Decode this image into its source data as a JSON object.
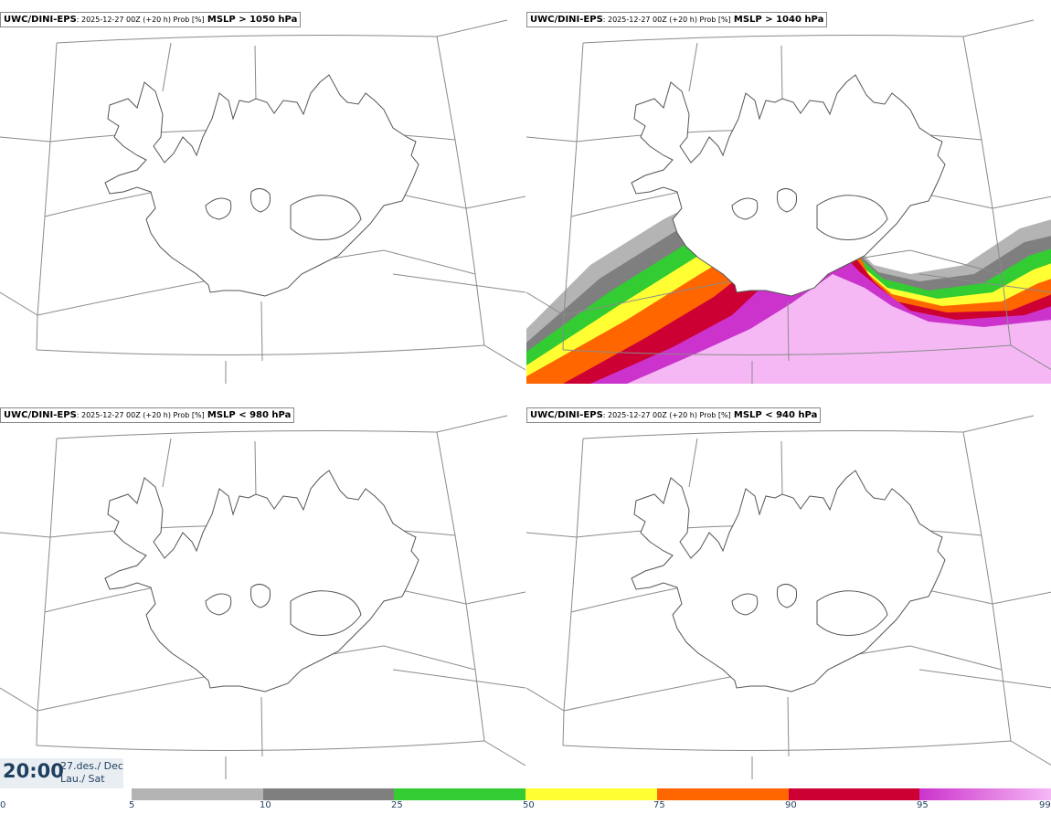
{
  "panels": [
    {
      "source": "UWC/DINI-EPS",
      "meta": ": 2025-12-27 00Z (+20 h) Prob [%]",
      "threshold": "MSLP > 1050 hPa"
    },
    {
      "source": "UWC/DINI-EPS",
      "meta": ": 2025-12-27 00Z (+20 h) Prob [%]",
      "threshold": "MSLP > 1040 hPa"
    },
    {
      "source": "UWC/DINI-EPS",
      "meta": ": 2025-12-27 00Z (+20 h) Prob [%]",
      "threshold": "MSLP < 980 hPa"
    },
    {
      "source": "UWC/DINI-EPS",
      "meta": ": 2025-12-27 00Z (+20 h) Prob [%]",
      "threshold": "MSLP < 940 hPa"
    }
  ],
  "time": {
    "clock": "20:00",
    "date_line1": "27.des./ Dec",
    "date_line2": "Lau./ Sat"
  },
  "colorbar": {
    "ticks": [
      "0",
      "5",
      "10",
      "25",
      "50",
      "75",
      "90",
      "95",
      "99"
    ],
    "bands": [
      {
        "from": "5",
        "to": "10",
        "color": "#b4b4b4"
      },
      {
        "from": "10",
        "to": "25",
        "color": "#7f7f7f"
      },
      {
        "from": "25",
        "to": "50",
        "color": "#33cc33"
      },
      {
        "from": "50",
        "to": "75",
        "color": "#ffff33"
      },
      {
        "from": "75",
        "to": "90",
        "color": "#ff6600"
      },
      {
        "from": "90",
        "to": "95",
        "color": "#cc0033"
      },
      {
        "from": "95",
        "to": "99",
        "color": "#cc33cc"
      }
    ],
    "top_color": "#f5b8f5"
  }
}
